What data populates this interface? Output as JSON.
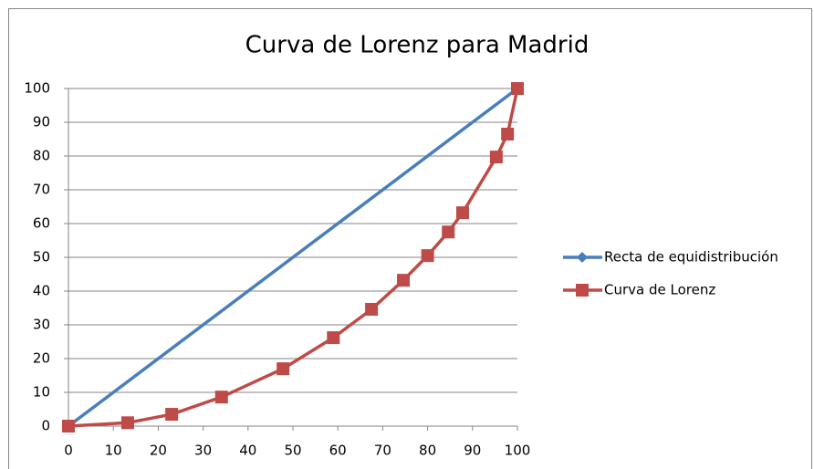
{
  "chart_data": {
    "type": "scatter",
    "title": "Curva de Lorenz para Madrid",
    "series": [
      {
        "name": "Recta de equidistribución",
        "color": "#4a7ebb",
        "marker": "diamond",
        "x": [
          0,
          100
        ],
        "values": [
          0,
          100
        ]
      },
      {
        "name": "Curva de Lorenz",
        "color": "#be4b48",
        "marker": "square",
        "x": [
          0,
          13.2,
          23,
          34.1,
          47.8,
          59,
          67.5,
          74.6,
          80,
          84.6,
          87.8,
          95.3,
          97.8,
          100
        ],
        "values": [
          0,
          1,
          3.5,
          8.6,
          17,
          26.2,
          34.6,
          43.2,
          50.5,
          57.5,
          63.2,
          79.7,
          86.5,
          100
        ]
      }
    ],
    "xlim": [
      0,
      100
    ],
    "xticks": [
      0,
      10,
      20,
      30,
      40,
      50,
      60,
      70,
      80,
      90,
      100
    ],
    "ylim": [
      0,
      100
    ],
    "yticks": [
      0,
      10,
      20,
      30,
      40,
      50,
      60,
      70,
      80,
      90,
      100
    ],
    "grid": true,
    "legend": "right"
  }
}
